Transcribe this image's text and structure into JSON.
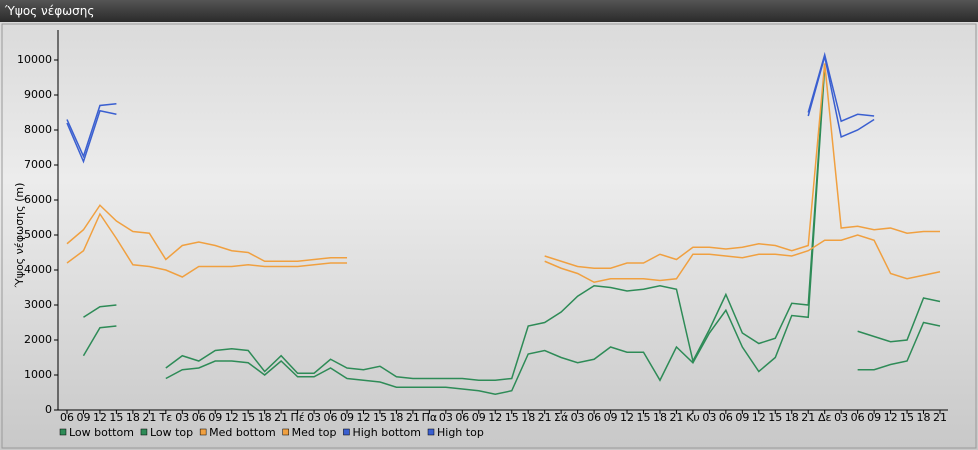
{
  "window_title": "Ύψος νέφωσης",
  "chart_data": {
    "type": "line",
    "y_label": "Ύψος νέφωσης (m)",
    "categories": [
      "06",
      "09",
      "12",
      "15",
      "18",
      "21",
      "Τε",
      "03",
      "06",
      "09",
      "12",
      "15",
      "18",
      "21",
      "Πέ",
      "03",
      "06",
      "09",
      "12",
      "15",
      "18",
      "21",
      "Πα",
      "03",
      "06",
      "09",
      "12",
      "15",
      "18",
      "21",
      "Σά",
      "03",
      "06",
      "09",
      "12",
      "15",
      "18",
      "21",
      "Κυ",
      "03",
      "06",
      "09",
      "12",
      "15",
      "18",
      "21",
      "Δε",
      "03",
      "06",
      "09",
      "12",
      "15",
      "18",
      "21"
    ],
    "ylim": [
      0,
      10000
    ],
    "yticks": [
      0,
      1000,
      2000,
      3000,
      4000,
      5000,
      6000,
      7000,
      8000,
      9000,
      10000
    ],
    "legend": "bottom-left",
    "series": [
      {
        "name": "Low bottom",
        "color": "#2e8b57",
        "values": [
          null,
          1550,
          2350,
          2400,
          null,
          null,
          900,
          1150,
          1200,
          1400,
          1400,
          1350,
          1000,
          1400,
          950,
          950,
          1200,
          900,
          850,
          800,
          650,
          650,
          650,
          650,
          600,
          550,
          450,
          550,
          1600,
          1700,
          1500,
          1350,
          1450,
          1800,
          1650,
          1650,
          850,
          1800,
          1350,
          2200,
          2850,
          1800,
          1100,
          1500,
          2700,
          2650,
          9800,
          null,
          1150,
          1150,
          1300,
          1400,
          2500,
          2400
        ]
      },
      {
        "name": "Low top",
        "color": "#2e8b57",
        "values": [
          null,
          2650,
          2950,
          3000,
          null,
          null,
          1200,
          1550,
          1400,
          1700,
          1750,
          1700,
          1100,
          1550,
          1050,
          1050,
          1450,
          1200,
          1150,
          1250,
          950,
          900,
          900,
          900,
          900,
          850,
          850,
          900,
          2400,
          2500,
          2800,
          3250,
          3550,
          3500,
          3400,
          3450,
          3550,
          3450,
          1400,
          2300,
          3300,
          2200,
          1900,
          2050,
          3050,
          3000,
          9900,
          null,
          2250,
          2100,
          1950,
          2000,
          3200,
          3100
        ]
      },
      {
        "name": "Med bottom",
        "color": "#f0a040",
        "values": [
          4200,
          4550,
          5600,
          4900,
          4150,
          4100,
          4000,
          3800,
          4100,
          4100,
          4100,
          4150,
          4100,
          4100,
          4100,
          4150,
          4200,
          4200,
          null,
          null,
          null,
          null,
          null,
          null,
          null,
          null,
          null,
          null,
          null,
          4250,
          4050,
          3900,
          3650,
          3750,
          3750,
          3750,
          3700,
          3750,
          4450,
          4450,
          4400,
          4350,
          4450,
          4450,
          4400,
          4550,
          4850,
          4850,
          5000,
          4850,
          3900,
          3750,
          3850,
          3950
        ]
      },
      {
        "name": "Med top",
        "color": "#f0a040",
        "values": [
          4750,
          5150,
          5850,
          5400,
          5100,
          5050,
          4300,
          4700,
          4800,
          4700,
          4550,
          4500,
          4250,
          4250,
          4250,
          4300,
          4350,
          4350,
          null,
          null,
          null,
          null,
          null,
          null,
          null,
          null,
          null,
          null,
          null,
          4400,
          4250,
          4100,
          4050,
          4050,
          4200,
          4200,
          4450,
          4300,
          4650,
          4650,
          4600,
          4650,
          4750,
          4700,
          4550,
          4700,
          9900,
          5200,
          5250,
          5150,
          5200,
          5050,
          5100,
          5100
        ]
      },
      {
        "name": "High bottom",
        "color": "#3a5fd0",
        "values": [
          8200,
          7100,
          8550,
          8450,
          null,
          null,
          null,
          null,
          null,
          null,
          null,
          null,
          null,
          null,
          null,
          null,
          null,
          null,
          null,
          null,
          null,
          null,
          null,
          null,
          null,
          null,
          null,
          null,
          null,
          null,
          null,
          null,
          null,
          null,
          null,
          null,
          null,
          null,
          null,
          null,
          null,
          null,
          null,
          null,
          null,
          8400,
          10100,
          7800,
          8000,
          8300,
          null,
          null,
          null,
          null
        ]
      },
      {
        "name": "High top",
        "color": "#3a5fd0",
        "values": [
          8300,
          7250,
          8700,
          8750,
          null,
          null,
          null,
          null,
          null,
          null,
          null,
          null,
          null,
          null,
          null,
          null,
          null,
          null,
          null,
          null,
          null,
          null,
          null,
          null,
          null,
          null,
          null,
          null,
          null,
          null,
          null,
          null,
          null,
          null,
          null,
          null,
          null,
          null,
          null,
          null,
          null,
          null,
          null,
          null,
          null,
          8500,
          10150,
          8250,
          8450,
          8400,
          null,
          null,
          null,
          null
        ]
      }
    ]
  }
}
